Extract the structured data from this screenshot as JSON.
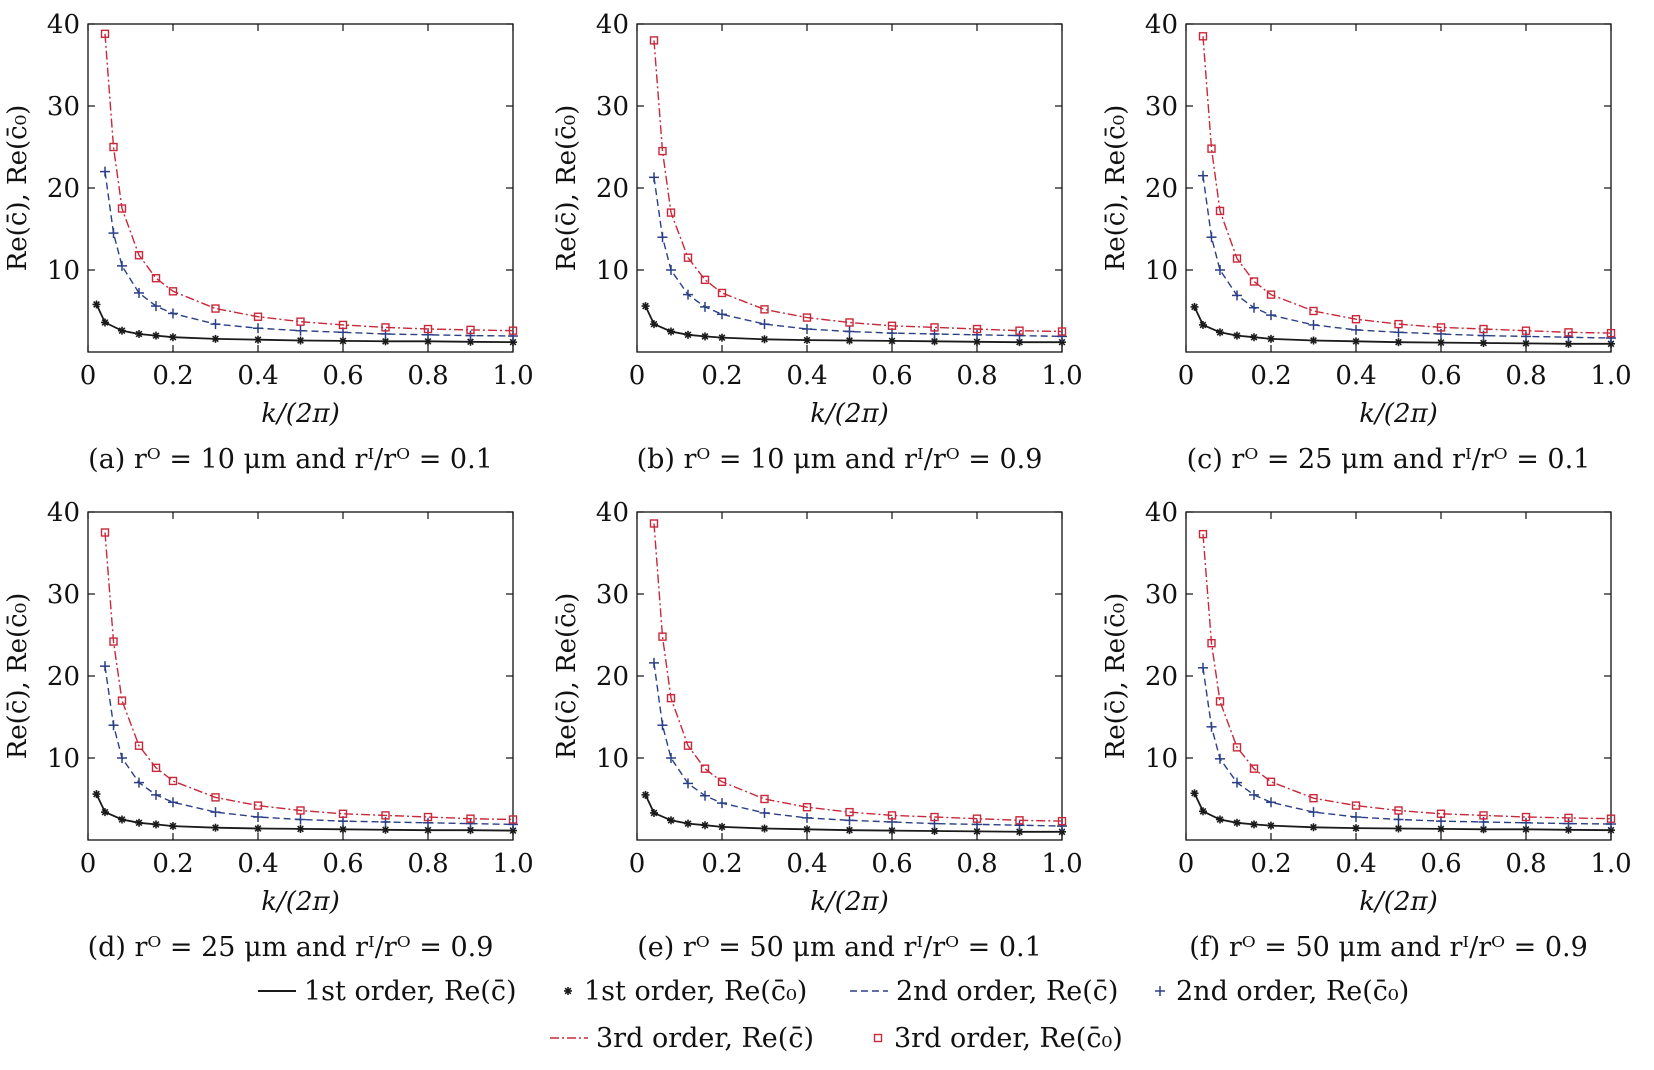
{
  "colors": {
    "first": "#1a1a1a",
    "second": "#2b3f86",
    "third": "#c8283a"
  },
  "legend": [
    {
      "key": "first_line",
      "label": "1st order, Re(c̄)",
      "style": "solid-line"
    },
    {
      "key": "first_marker",
      "label": "1st order, Re(c̄₀)",
      "style": "star-marker"
    },
    {
      "key": "second_line",
      "label": "2nd order, Re(c̄)",
      "style": "dashed-line"
    },
    {
      "key": "second_marker",
      "label": "2nd order, Re(c̄₀)",
      "style": "plus-marker"
    },
    {
      "key": "third_line",
      "label": "3rd order, Re(c̄)",
      "style": "dashdot-line"
    },
    {
      "key": "third_marker",
      "label": "3rd order, Re(c̄₀)",
      "style": "square-marker"
    }
  ],
  "chart_data": [
    {
      "type": "line",
      "caption": "(a) rᴼ = 10 μm and rᴵ/rᴼ = 0.1",
      "xlabel": "k/(2π)",
      "ylabel": "Re(c̄), Re(c̄₀)",
      "xlim": [
        0,
        1.0
      ],
      "ylim": [
        0,
        40
      ],
      "xticks": [
        "0",
        "0.2",
        "0.4",
        "0.6",
        "0.8",
        "1.0"
      ],
      "yticks": [
        "10",
        "20",
        "30",
        "40"
      ],
      "grid": false,
      "series": [
        {
          "order": 1,
          "x": [
            0.02,
            0.04,
            0.08,
            0.12,
            0.16,
            0.2,
            0.3,
            0.4,
            0.5,
            0.6,
            0.7,
            0.8,
            0.9,
            1.0
          ],
          "y": [
            5.8,
            3.6,
            2.6,
            2.2,
            2.0,
            1.8,
            1.6,
            1.5,
            1.4,
            1.35,
            1.3,
            1.3,
            1.25,
            1.2
          ]
        },
        {
          "order": 2,
          "x": [
            0.04,
            0.06,
            0.08,
            0.12,
            0.16,
            0.2,
            0.3,
            0.4,
            0.5,
            0.6,
            0.7,
            0.8,
            0.9,
            1.0
          ],
          "y": [
            22.0,
            14.5,
            10.5,
            7.2,
            5.6,
            4.7,
            3.4,
            2.9,
            2.6,
            2.4,
            2.2,
            2.1,
            2.0,
            1.95
          ]
        },
        {
          "order": 3,
          "x": [
            0.04,
            0.06,
            0.08,
            0.12,
            0.16,
            0.2,
            0.3,
            0.4,
            0.5,
            0.6,
            0.7,
            0.8,
            0.9,
            1.0
          ],
          "y": [
            38.8,
            25.0,
            17.5,
            11.8,
            9.0,
            7.4,
            5.3,
            4.3,
            3.7,
            3.3,
            3.0,
            2.8,
            2.7,
            2.6
          ]
        }
      ]
    },
    {
      "type": "line",
      "caption": "(b) rᴼ = 10 μm and rᴵ/rᴼ = 0.9",
      "xlabel": "k/(2π)",
      "ylabel": "Re(c̄), Re(c̄₀)",
      "xlim": [
        0,
        1.0
      ],
      "ylim": [
        0,
        40
      ],
      "xticks": [
        "0",
        "0.2",
        "0.4",
        "0.6",
        "0.8",
        "1.0"
      ],
      "yticks": [
        "10",
        "20",
        "30",
        "40"
      ],
      "grid": false,
      "series": [
        {
          "order": 1,
          "x": [
            0.02,
            0.04,
            0.08,
            0.12,
            0.16,
            0.2,
            0.3,
            0.4,
            0.5,
            0.6,
            0.7,
            0.8,
            0.9,
            1.0
          ],
          "y": [
            5.6,
            3.4,
            2.5,
            2.1,
            1.9,
            1.75,
            1.55,
            1.45,
            1.4,
            1.35,
            1.3,
            1.25,
            1.2,
            1.2
          ]
        },
        {
          "order": 2,
          "x": [
            0.04,
            0.06,
            0.08,
            0.12,
            0.16,
            0.2,
            0.3,
            0.4,
            0.5,
            0.6,
            0.7,
            0.8,
            0.9,
            1.0
          ],
          "y": [
            21.3,
            14.0,
            10.0,
            7.0,
            5.5,
            4.6,
            3.4,
            2.8,
            2.5,
            2.3,
            2.2,
            2.1,
            2.0,
            1.9
          ]
        },
        {
          "order": 3,
          "x": [
            0.04,
            0.06,
            0.08,
            0.12,
            0.16,
            0.2,
            0.3,
            0.4,
            0.5,
            0.6,
            0.7,
            0.8,
            0.9,
            1.0
          ],
          "y": [
            38.0,
            24.5,
            17.0,
            11.5,
            8.8,
            7.2,
            5.2,
            4.2,
            3.6,
            3.2,
            3.0,
            2.8,
            2.6,
            2.5
          ]
        }
      ]
    },
    {
      "type": "line",
      "caption": "(c) rᴼ = 25 μm and rᴵ/rᴼ = 0.1",
      "xlabel": "k/(2π)",
      "ylabel": "Re(c̄), Re(c̄₀)",
      "xlim": [
        0,
        1.0
      ],
      "ylim": [
        0,
        40
      ],
      "xticks": [
        "0",
        "0.2",
        "0.4",
        "0.6",
        "0.8",
        "1.0"
      ],
      "yticks": [
        "10",
        "20",
        "30",
        "40"
      ],
      "grid": false,
      "series": [
        {
          "order": 1,
          "x": [
            0.02,
            0.04,
            0.08,
            0.12,
            0.16,
            0.2,
            0.3,
            0.4,
            0.5,
            0.6,
            0.7,
            0.8,
            0.9,
            1.0
          ],
          "y": [
            5.5,
            3.3,
            2.4,
            2.0,
            1.8,
            1.6,
            1.4,
            1.3,
            1.2,
            1.15,
            1.1,
            1.05,
            1.0,
            1.0
          ]
        },
        {
          "order": 2,
          "x": [
            0.04,
            0.06,
            0.08,
            0.12,
            0.16,
            0.2,
            0.3,
            0.4,
            0.5,
            0.6,
            0.7,
            0.8,
            0.9,
            1.0
          ],
          "y": [
            21.5,
            14.0,
            10.0,
            6.9,
            5.4,
            4.5,
            3.3,
            2.7,
            2.4,
            2.2,
            2.0,
            1.9,
            1.8,
            1.7
          ]
        },
        {
          "order": 3,
          "x": [
            0.04,
            0.06,
            0.08,
            0.12,
            0.16,
            0.2,
            0.3,
            0.4,
            0.5,
            0.6,
            0.7,
            0.8,
            0.9,
            1.0
          ],
          "y": [
            38.5,
            24.8,
            17.2,
            11.4,
            8.6,
            7.0,
            5.0,
            4.0,
            3.4,
            3.0,
            2.8,
            2.6,
            2.4,
            2.3
          ]
        }
      ]
    },
    {
      "type": "line",
      "caption": "(d) rᴼ = 25 μm and rᴵ/rᴼ = 0.9",
      "xlabel": "k/(2π)",
      "ylabel": "Re(c̄), Re(c̄₀)",
      "xlim": [
        0,
        1.0
      ],
      "ylim": [
        0,
        40
      ],
      "xticks": [
        "0",
        "0.2",
        "0.4",
        "0.6",
        "0.8",
        "1.0"
      ],
      "yticks": [
        "10",
        "20",
        "30",
        "40"
      ],
      "grid": false,
      "series": [
        {
          "order": 1,
          "x": [
            0.02,
            0.04,
            0.08,
            0.12,
            0.16,
            0.2,
            0.3,
            0.4,
            0.5,
            0.6,
            0.7,
            0.8,
            0.9,
            1.0
          ],
          "y": [
            5.6,
            3.4,
            2.5,
            2.1,
            1.9,
            1.7,
            1.5,
            1.4,
            1.35,
            1.3,
            1.25,
            1.2,
            1.2,
            1.15
          ]
        },
        {
          "order": 2,
          "x": [
            0.04,
            0.06,
            0.08,
            0.12,
            0.16,
            0.2,
            0.3,
            0.4,
            0.5,
            0.6,
            0.7,
            0.8,
            0.9,
            1.0
          ],
          "y": [
            21.2,
            14.0,
            10.0,
            7.0,
            5.5,
            4.6,
            3.4,
            2.8,
            2.5,
            2.3,
            2.2,
            2.1,
            2.0,
            1.9
          ]
        },
        {
          "order": 3,
          "x": [
            0.04,
            0.06,
            0.08,
            0.12,
            0.16,
            0.2,
            0.3,
            0.4,
            0.5,
            0.6,
            0.7,
            0.8,
            0.9,
            1.0
          ],
          "y": [
            37.5,
            24.2,
            17.0,
            11.5,
            8.8,
            7.2,
            5.2,
            4.2,
            3.6,
            3.2,
            3.0,
            2.8,
            2.6,
            2.5
          ]
        }
      ]
    },
    {
      "type": "line",
      "caption": "(e) rᴼ = 50 μm and rᴵ/rᴼ = 0.1",
      "xlabel": "k/(2π)",
      "ylabel": "Re(c̄), Re(c̄₀)",
      "xlim": [
        0,
        1.0
      ],
      "ylim": [
        0,
        40
      ],
      "xticks": [
        "0",
        "0.2",
        "0.4",
        "0.6",
        "0.8",
        "1.0"
      ],
      "yticks": [
        "10",
        "20",
        "30",
        "40"
      ],
      "grid": false,
      "series": [
        {
          "order": 1,
          "x": [
            0.02,
            0.04,
            0.08,
            0.12,
            0.16,
            0.2,
            0.3,
            0.4,
            0.5,
            0.6,
            0.7,
            0.8,
            0.9,
            1.0
          ],
          "y": [
            5.5,
            3.3,
            2.4,
            2.0,
            1.8,
            1.6,
            1.4,
            1.3,
            1.2,
            1.15,
            1.1,
            1.05,
            1.0,
            1.0
          ]
        },
        {
          "order": 2,
          "x": [
            0.04,
            0.06,
            0.08,
            0.12,
            0.16,
            0.2,
            0.3,
            0.4,
            0.5,
            0.6,
            0.7,
            0.8,
            0.9,
            1.0
          ],
          "y": [
            21.6,
            14.0,
            10.0,
            6.9,
            5.4,
            4.5,
            3.3,
            2.7,
            2.4,
            2.2,
            2.0,
            1.9,
            1.8,
            1.7
          ]
        },
        {
          "order": 3,
          "x": [
            0.04,
            0.06,
            0.08,
            0.12,
            0.16,
            0.2,
            0.3,
            0.4,
            0.5,
            0.6,
            0.7,
            0.8,
            0.9,
            1.0
          ],
          "y": [
            38.6,
            24.8,
            17.3,
            11.5,
            8.7,
            7.1,
            5.0,
            4.0,
            3.4,
            3.0,
            2.8,
            2.6,
            2.4,
            2.3
          ]
        }
      ]
    },
    {
      "type": "line",
      "caption": "(f) rᴼ = 50 μm and rᴵ/rᴼ = 0.9",
      "xlabel": "k/(2π)",
      "ylabel": "Re(c̄), Re(c̄₀)",
      "xlim": [
        0,
        1.0
      ],
      "ylim": [
        0,
        40
      ],
      "xticks": [
        "0",
        "0.2",
        "0.4",
        "0.6",
        "0.8",
        "1.0"
      ],
      "yticks": [
        "10",
        "20",
        "30",
        "40"
      ],
      "grid": false,
      "series": [
        {
          "order": 1,
          "x": [
            0.02,
            0.04,
            0.08,
            0.12,
            0.16,
            0.2,
            0.3,
            0.4,
            0.5,
            0.6,
            0.7,
            0.8,
            0.9,
            1.0
          ],
          "y": [
            5.7,
            3.5,
            2.5,
            2.1,
            1.9,
            1.75,
            1.55,
            1.45,
            1.4,
            1.35,
            1.3,
            1.3,
            1.25,
            1.2
          ]
        },
        {
          "order": 2,
          "x": [
            0.04,
            0.06,
            0.08,
            0.12,
            0.16,
            0.2,
            0.3,
            0.4,
            0.5,
            0.6,
            0.7,
            0.8,
            0.9,
            1.0
          ],
          "y": [
            21.0,
            13.8,
            9.9,
            7.0,
            5.5,
            4.6,
            3.4,
            2.8,
            2.5,
            2.3,
            2.2,
            2.1,
            2.0,
            1.95
          ]
        },
        {
          "order": 3,
          "x": [
            0.04,
            0.06,
            0.08,
            0.12,
            0.16,
            0.2,
            0.3,
            0.4,
            0.5,
            0.6,
            0.7,
            0.8,
            0.9,
            1.0
          ],
          "y": [
            37.3,
            24.0,
            16.9,
            11.3,
            8.7,
            7.1,
            5.1,
            4.2,
            3.6,
            3.2,
            3.0,
            2.8,
            2.7,
            2.6
          ]
        }
      ]
    }
  ]
}
